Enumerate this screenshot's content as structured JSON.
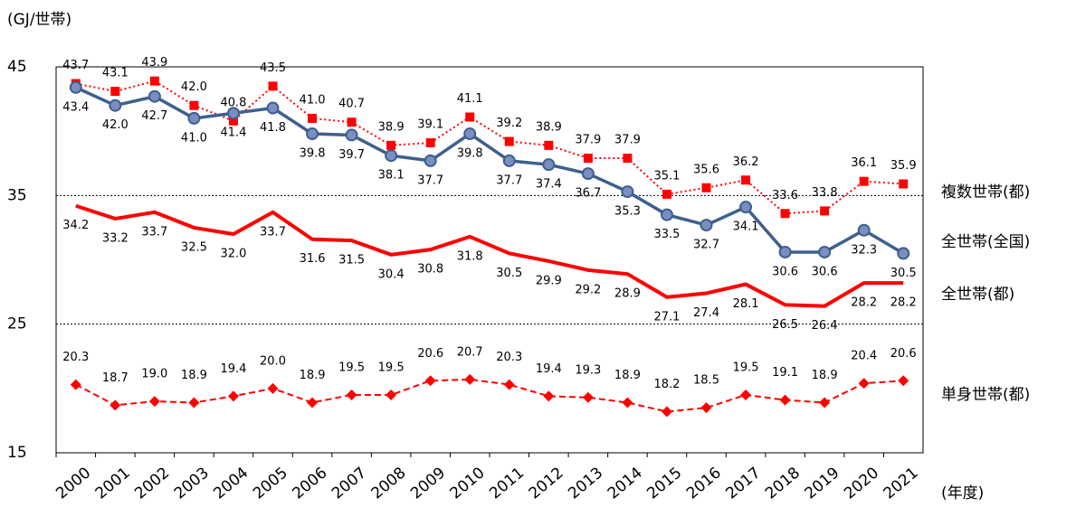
{
  "chart_data": {
    "type": "line",
    "y_unit": "(GJ/世帯)",
    "x_unit": "(年度)",
    "categories": [
      "2000",
      "2001",
      "2002",
      "2003",
      "2004",
      "2005",
      "2006",
      "2007",
      "2008",
      "2009",
      "2010",
      "2011",
      "2012",
      "2013",
      "2014",
      "2015",
      "2016",
      "2017",
      "2018",
      "2019",
      "2020",
      "2021"
    ],
    "ylim": [
      15,
      45
    ],
    "yticks": [
      15,
      25,
      35,
      45
    ],
    "grid": true,
    "series": [
      {
        "name": "複数世帯(都)",
        "color": "#ff0000",
        "marker": "square",
        "dash": "dotted",
        "values": [
          43.7,
          43.1,
          43.9,
          42.0,
          40.8,
          43.5,
          41.0,
          40.7,
          38.9,
          39.1,
          41.1,
          39.2,
          38.9,
          37.9,
          37.9,
          35.1,
          35.6,
          36.2,
          33.6,
          33.8,
          36.1,
          35.9
        ],
        "value_labels": [
          "43.7",
          "43.1",
          "43.9",
          "42.0",
          "40.8",
          "43.5",
          "41.0",
          "40.7",
          "38.9",
          "39.1",
          "41.1",
          "39.2",
          "38.9",
          "37.9",
          "37.9",
          "35.1",
          "35.6",
          "36.2",
          "33.6",
          "33.8",
          "36.1",
          "35.9"
        ]
      },
      {
        "name": "全世帯(全国)",
        "color": "#3e5f8e",
        "marker": "circle",
        "dash": "solid",
        "values": [
          43.4,
          42.0,
          42.7,
          41.0,
          41.4,
          41.8,
          39.8,
          39.7,
          38.1,
          37.7,
          39.8,
          37.7,
          37.4,
          36.7,
          35.3,
          33.5,
          32.7,
          34.1,
          30.6,
          30.6,
          32.3,
          30.5
        ],
        "value_labels": [
          "43.4",
          "42.0",
          "42.7",
          "41.0",
          "41.4",
          "41.8",
          "39.8",
          "39.7",
          "38.1",
          "37.7",
          "39.8",
          "37.7",
          "37.4",
          "36.7",
          "35.3",
          "33.5",
          "32.7",
          "34.1",
          "30.6",
          "30.6",
          "32.3",
          "30.5"
        ]
      },
      {
        "name": "全世帯(都)",
        "color": "#ff0000",
        "marker": "none",
        "dash": "solid",
        "values": [
          34.2,
          33.2,
          33.7,
          32.5,
          32.0,
          33.7,
          31.6,
          31.5,
          30.4,
          30.8,
          31.8,
          30.5,
          29.9,
          29.2,
          28.9,
          27.1,
          27.4,
          28.1,
          26.5,
          26.4,
          28.2,
          28.2
        ],
        "value_labels": [
          "34.2",
          "33.2",
          "33.7",
          "32.5",
          "32.0",
          "33.7",
          "31.6",
          "31.5",
          "30.4",
          "30.8",
          "31.8",
          "30.5",
          "29.9",
          "29.2",
          "28.9",
          "27.1",
          "27.4",
          "28.1",
          "26.5",
          "26.4",
          "28.2",
          "28.2"
        ]
      },
      {
        "name": "単身世帯(都)",
        "color": "#ff0000",
        "marker": "diamond",
        "dash": "dashed",
        "values": [
          20.3,
          18.7,
          19.0,
          18.9,
          19.4,
          20.0,
          18.9,
          19.5,
          19.5,
          20.6,
          20.7,
          20.3,
          19.4,
          19.3,
          18.9,
          18.2,
          18.5,
          19.5,
          19.1,
          18.9,
          20.4,
          20.6
        ],
        "value_labels": [
          "20.3",
          "18.7",
          "19.0",
          "18.9",
          "19.4",
          "20.0",
          "18.9",
          "19.5",
          "19.5",
          "20.6",
          "20.7",
          "20.3",
          "19.4",
          "19.3",
          "18.9",
          "18.2",
          "18.5",
          "19.5",
          "19.1",
          "18.9",
          "20.4",
          "20.6"
        ]
      }
    ]
  }
}
